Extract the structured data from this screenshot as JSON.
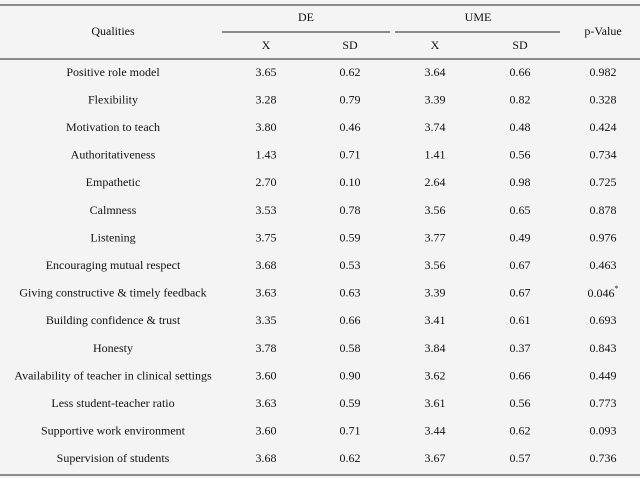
{
  "table": {
    "header": {
      "qualities": "Qualities",
      "groups": [
        "DE",
        "UME"
      ],
      "sub": [
        "X",
        "SD",
        "X",
        "SD"
      ],
      "pvalue": "p-Value"
    },
    "rows": [
      [
        "Positive role model",
        "3.65",
        "0.62",
        "3.64",
        "0.66",
        "0.982"
      ],
      [
        "Flexibility",
        "3.28",
        "0.79",
        "3.39",
        "0.82",
        "0.328"
      ],
      [
        "Motivation to teach",
        "3.80",
        "0.46",
        "3.74",
        "0.48",
        "0.424"
      ],
      [
        "Authoritativeness",
        "1.43",
        "0.71",
        "1.41",
        "0.56",
        "0.734"
      ],
      [
        "Empathetic",
        "2.70",
        "0.10",
        "2.64",
        "0.98",
        "0.725"
      ],
      [
        "Calmness",
        "3.53",
        "0.78",
        "3.56",
        "0.65",
        "0.878"
      ],
      [
        "Listening",
        "3.75",
        "0.59",
        "3.77",
        "0.49",
        "0.976"
      ],
      [
        "Encouraging mutual respect",
        "3.68",
        "0.53",
        "3.56",
        "0.67",
        "0.463"
      ],
      [
        "Giving constructive & timely feedback",
        "3.63",
        "0.63",
        "3.39",
        "0.67",
        {
          "text": "0.046",
          "sup": "*"
        }
      ],
      [
        "Building confidence & trust",
        "3.35",
        "0.66",
        "3.41",
        "0.61",
        "0.693"
      ],
      [
        "Honesty",
        "3.78",
        "0.58",
        "3.84",
        "0.37",
        "0.843"
      ],
      [
        "Availability of teacher in clinical settings",
        "3.60",
        "0.90",
        "3.62",
        "0.66",
        "0.449"
      ],
      [
        "Less student-teacher ratio",
        "3.63",
        "0.59",
        "3.61",
        "0.56",
        "0.773"
      ],
      [
        "Supportive work environment",
        "3.60",
        "0.71",
        "3.44",
        "0.62",
        "0.093"
      ],
      [
        "Supervision of students",
        "3.68",
        "0.62",
        "3.67",
        "0.57",
        "0.736"
      ]
    ]
  }
}
